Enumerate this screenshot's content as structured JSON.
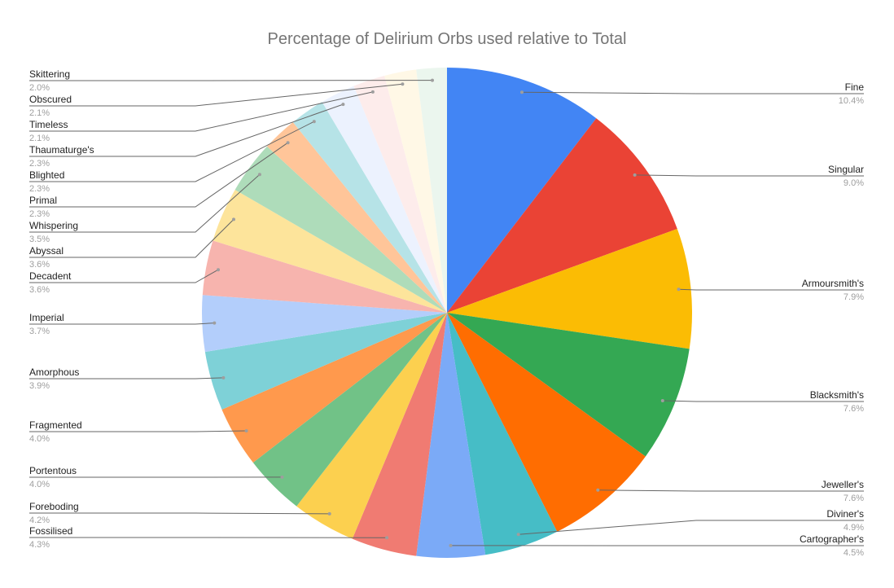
{
  "chart_data": {
    "type": "pie",
    "title": "Percentage of Delirium Orbs used relative to Total",
    "slices": [
      {
        "label": "Fine",
        "value": 10.4,
        "display": "10.4%",
        "color": "#4285f4"
      },
      {
        "label": "Singular",
        "value": 9.0,
        "display": "9.0%",
        "color": "#ea4335"
      },
      {
        "label": "Armoursmith's",
        "value": 7.9,
        "display": "7.9%",
        "color": "#fbbc04"
      },
      {
        "label": "Blacksmith's",
        "value": 7.6,
        "display": "7.6%",
        "color": "#34a853"
      },
      {
        "label": "Jeweller's",
        "value": 7.6,
        "display": "7.6%",
        "color": "#ff6d01"
      },
      {
        "label": "Diviner's",
        "value": 4.9,
        "display": "4.9%",
        "color": "#46bdc6"
      },
      {
        "label": "Cartographer's",
        "value": 4.5,
        "display": "4.5%",
        "color": "#7baaf7"
      },
      {
        "label": "Fossilised",
        "value": 4.3,
        "display": "4.3%",
        "color": "#f07b72"
      },
      {
        "label": "Foreboding",
        "value": 4.2,
        "display": "4.2%",
        "color": "#fcd04f"
      },
      {
        "label": "Portentous",
        "value": 4.0,
        "display": "4.0%",
        "color": "#71c287"
      },
      {
        "label": "Fragmented",
        "value": 4.0,
        "display": "4.0%",
        "color": "#ff994d"
      },
      {
        "label": "Amorphous",
        "value": 3.9,
        "display": "3.9%",
        "color": "#7ed1d7"
      },
      {
        "label": "Imperial",
        "value": 3.7,
        "display": "3.7%",
        "color": "#b3cefb"
      },
      {
        "label": "Decadent",
        "value": 3.6,
        "display": "3.6%",
        "color": "#f7b4ae"
      },
      {
        "label": "Abyssal",
        "value": 3.6,
        "display": "3.6%",
        "color": "#fde49b"
      },
      {
        "label": "Whispering",
        "value": 3.5,
        "display": "3.5%",
        "color": "#aedcba"
      },
      {
        "label": "Primal",
        "value": 2.3,
        "display": "2.3%",
        "color": "#ffc599"
      },
      {
        "label": "Blighted",
        "value": 2.3,
        "display": "2.3%",
        "color": "#b6e3e7"
      },
      {
        "label": "Thaumaturge's",
        "value": 2.3,
        "display": "2.3%",
        "color": "#ecf2fe"
      },
      {
        "label": "Timeless",
        "value": 2.1,
        "display": "2.1%",
        "color": "#fdeceb"
      },
      {
        "label": "Obscured",
        "value": 2.1,
        "display": "2.1%",
        "color": "#fff8e6"
      },
      {
        "label": "Skittering",
        "value": 2.0,
        "display": "2.0%",
        "color": "#ebf6ee"
      }
    ],
    "legend": "labels-outside"
  }
}
